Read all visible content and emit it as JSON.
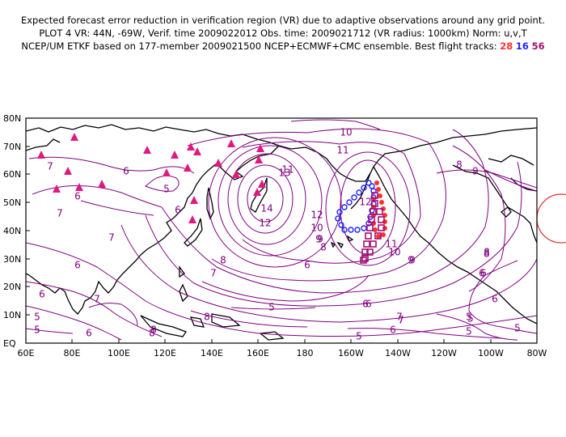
{
  "header": {
    "line1": "Expected forecast error reduction in verification region (VR) due to adaptive observations around any grid point.",
    "line2": "PLOT 4 VR: 44N, -69W, Verif. time 2009022012 Obs. time: 2009021712 (VR radius: 1000km) Norm: u,v,T",
    "line3_prefix": "NCEP/UM ETKF based on 177-member 2009021500 NCEP+ECMWF+CMC ensemble. Best flight tracks:",
    "tracks": [
      {
        "label": "28",
        "color": "#ff3030"
      },
      {
        "label": "16",
        "color": "#2020ff"
      },
      {
        "label": "56",
        "color": "#a01070"
      }
    ]
  },
  "map": {
    "x_ticks": [
      "60E",
      "80E",
      "100E",
      "120E",
      "140E",
      "160E",
      "180",
      "160W",
      "140W",
      "120W",
      "100W",
      "80W"
    ],
    "y_ticks": [
      "EQ",
      "10N",
      "20N",
      "30N",
      "40N",
      "50N",
      "60N",
      "70N",
      "80N"
    ],
    "contour_labels": [
      "7",
      "6",
      "6",
      "5",
      "6",
      "7",
      "8",
      "9",
      "10",
      "11",
      "12",
      "13",
      "14",
      "12",
      "11",
      "10",
      "9",
      "8",
      "7",
      "6",
      "7",
      "6",
      "5",
      "5",
      "5",
      "6",
      "8",
      "8",
      "9",
      "10",
      "11",
      "12",
      "8",
      "9",
      "8",
      "7",
      "6",
      "5",
      "6",
      "7",
      "8",
      "9",
      "8",
      "7",
      "6",
      "5",
      "5",
      "6",
      "7",
      "6",
      "6",
      "5",
      "6",
      "5"
    ],
    "contour_color": "#800080",
    "coast_color": "#000000",
    "vr_circle_color": "#e03030",
    "dropsonde_color": "#e0187f"
  }
}
